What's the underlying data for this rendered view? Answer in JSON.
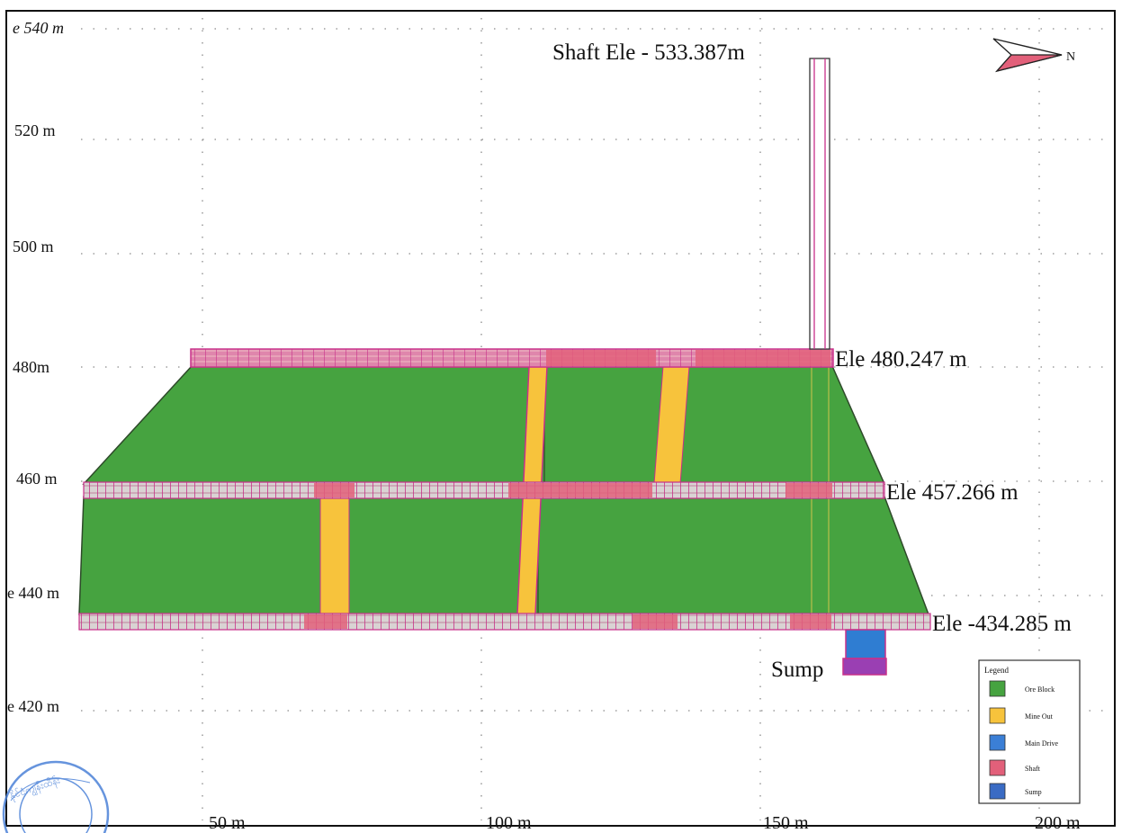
{
  "y_axis_labels": [
    "e 540 m",
    "520 m",
    "500 m",
    "480m",
    "460 m",
    "e 440 m",
    "e 420 m"
  ],
  "x_axis_labels": [
    "50 m",
    "100 m",
    "150 m",
    "200 m"
  ],
  "annotations": {
    "shaft_top": "Shaft Ele - 533.387m",
    "level_1": "Ele 480.247 m",
    "level_2": "Ele 457.266 m",
    "level_3": "Ele -434.285  m",
    "sump": "Sump"
  },
  "north_arrow": {
    "label": "N",
    "icon": "north-arrow-icon"
  },
  "legend": {
    "title": "Legend",
    "items": [
      {
        "label": "Ore Block",
        "color": "#46a340"
      },
      {
        "label": "Mine Out",
        "color": "#f7c33c"
      },
      {
        "label": "Main Drive",
        "color": "#3b7fd6"
      },
      {
        "label": "Shaft",
        "color": "#e2607a"
      },
      {
        "label": "Sump",
        "color": "#3a6bc4"
      }
    ]
  },
  "colors": {
    "ore_block": "#46a340",
    "mine_out": "#f7c33c",
    "drive_pink": "#e2607a",
    "drive_hatch": "#d8d0cf",
    "magenta_lines": "#c8308a",
    "sump_top": "#2f7dd2",
    "sump_bottom": "#9a3fb3",
    "grid": "#8a8a8a"
  },
  "stamp": {
    "text": "နိုင်ငံကျွန်းထိန်း"
  }
}
